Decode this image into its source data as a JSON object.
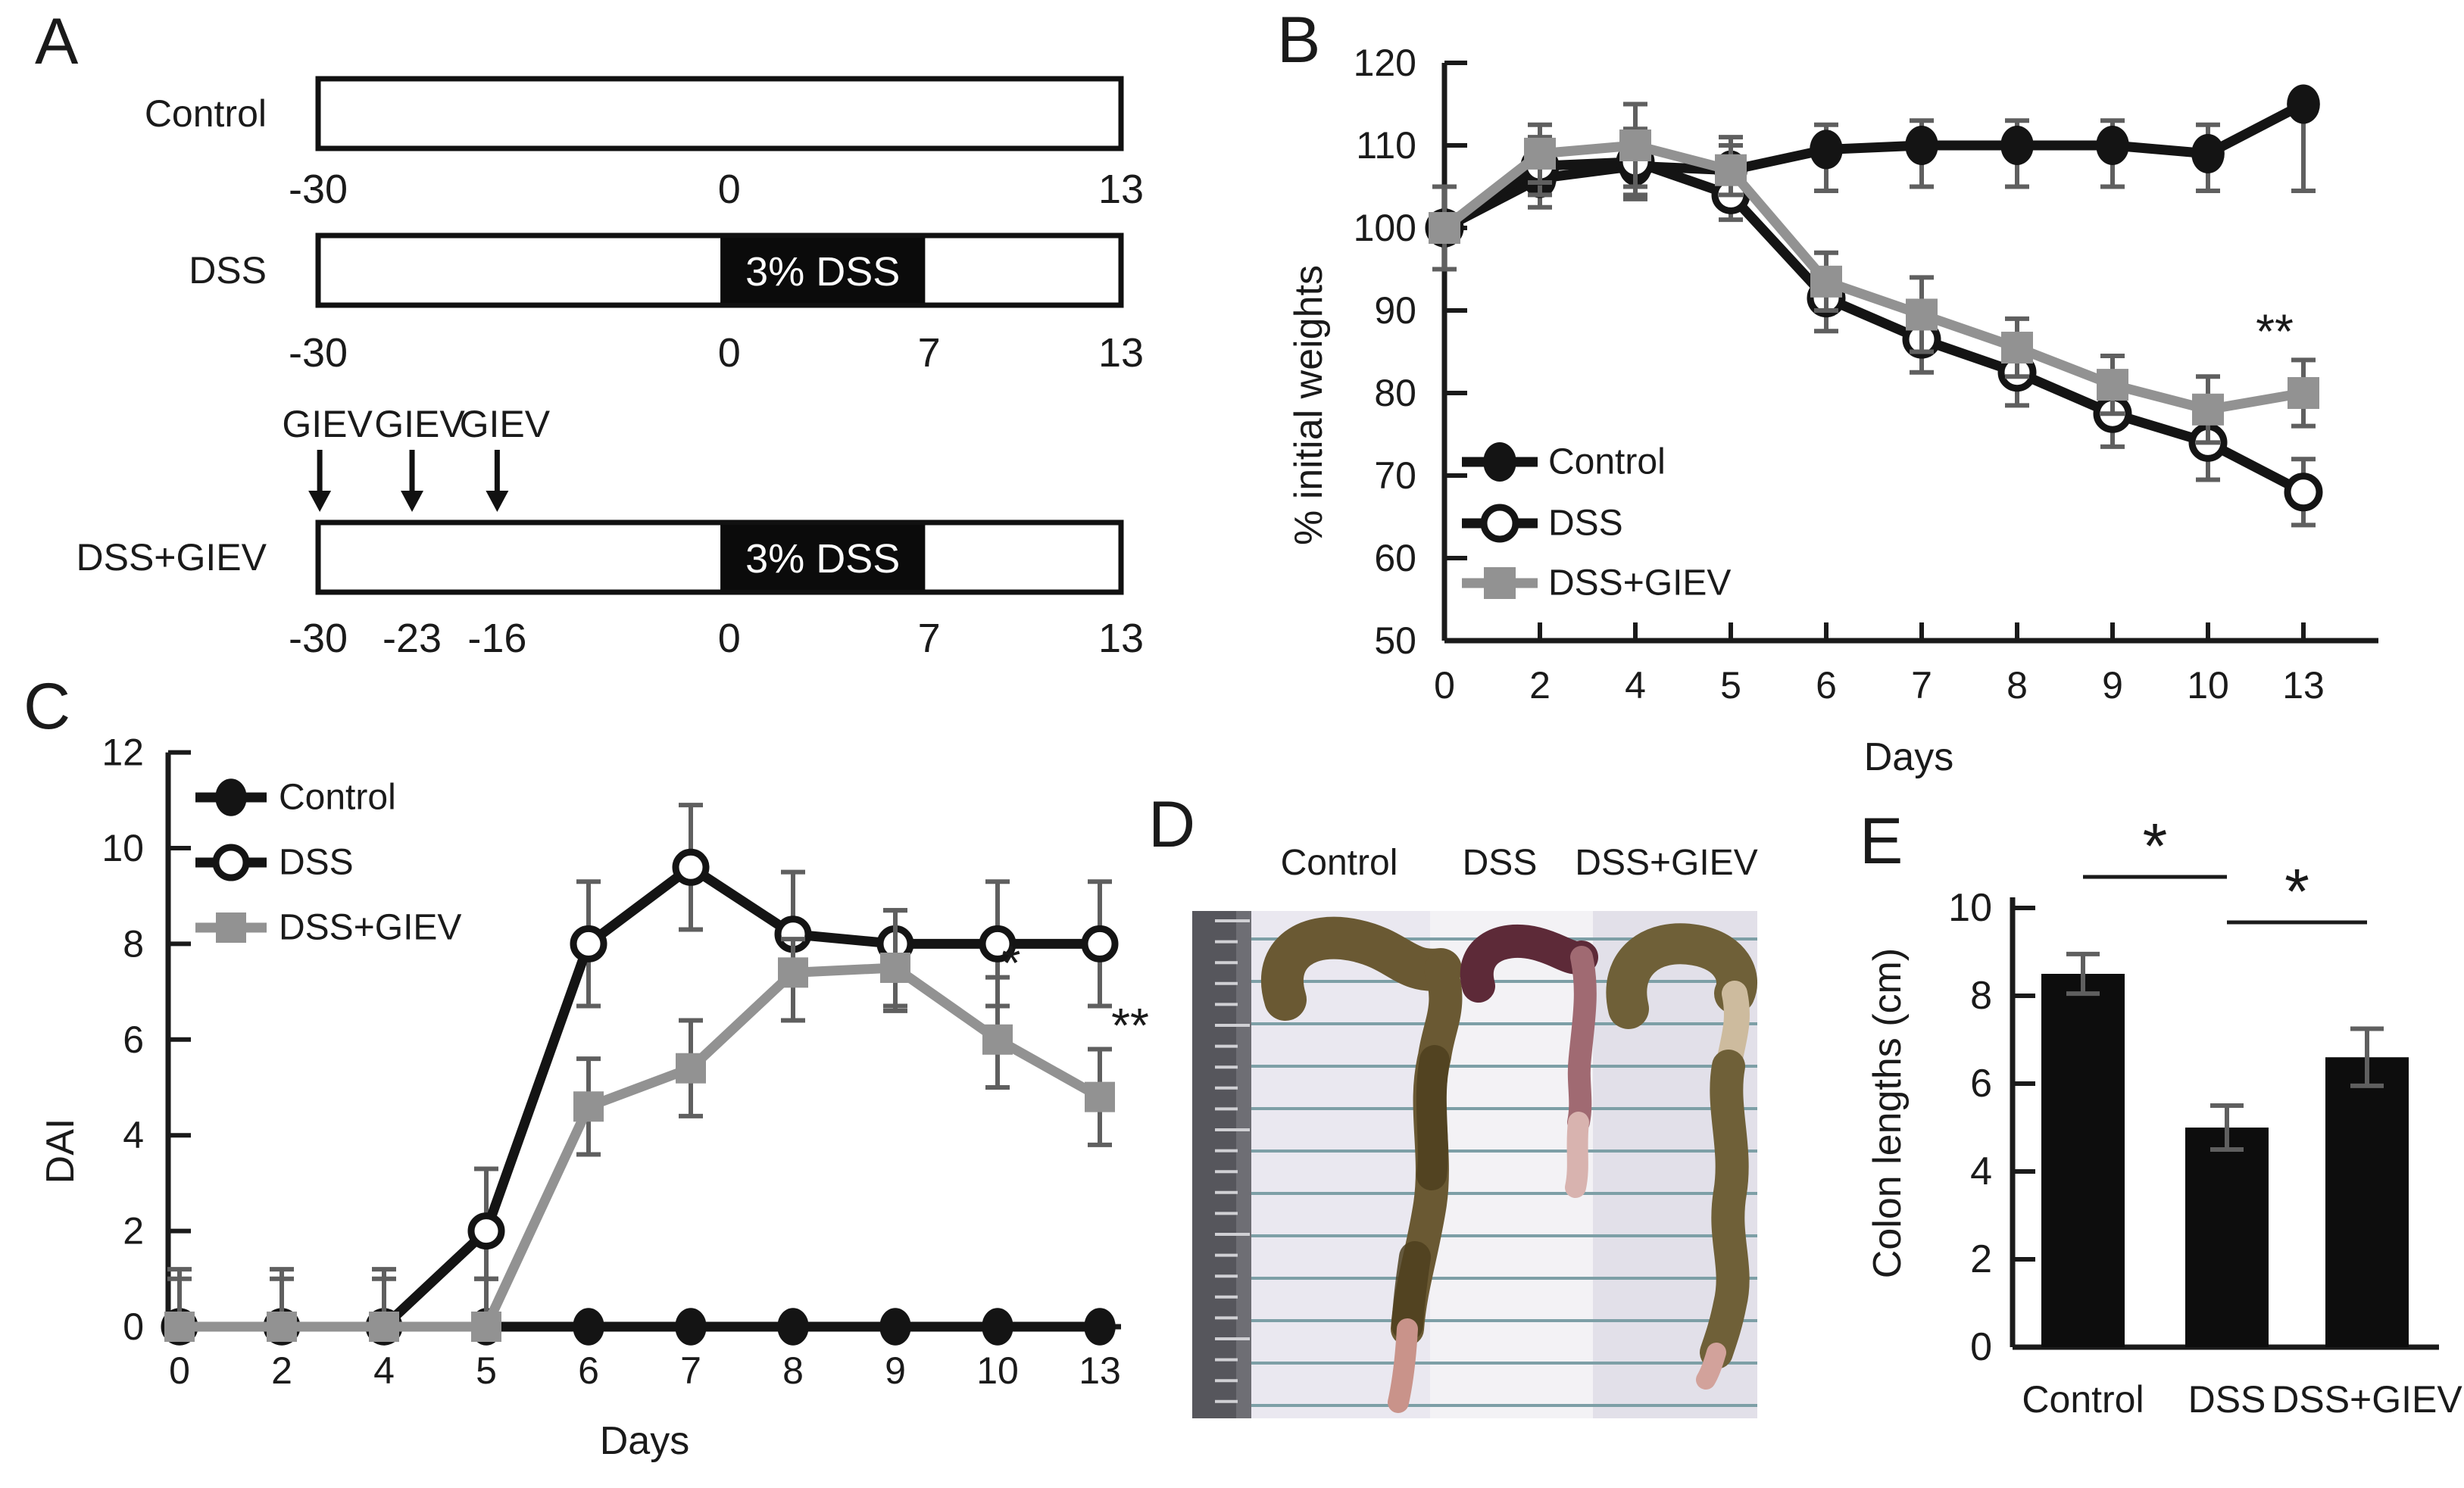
{
  "panel_letters": {
    "a": "A",
    "b": "B",
    "c": "C",
    "d": "D",
    "e": "E"
  },
  "panel_a": {
    "label": "A",
    "block_label": "3% DSS",
    "rows": [
      {
        "group": "Control",
        "has_block": false,
        "ticks": [
          {
            "d": "-30",
            "f": 0.0
          },
          {
            "d": "0",
            "f": 0.512
          },
          {
            "d": "13",
            "f": 1.0
          }
        ],
        "giev": []
      },
      {
        "group": "DSS",
        "has_block": true,
        "ticks": [
          {
            "d": "-30",
            "f": 0.0
          },
          {
            "d": "0",
            "f": 0.512
          },
          {
            "d": "7",
            "f": 0.761
          },
          {
            "d": "13",
            "f": 1.0
          }
        ],
        "giev": []
      },
      {
        "group": "DSS+GIEV",
        "has_block": true,
        "ticks": [
          {
            "d": "-30",
            "f": 0.0
          },
          {
            "d": "-23",
            "f": 0.117
          },
          {
            "d": "-16",
            "f": 0.223
          },
          {
            "d": "0",
            "f": 0.512
          },
          {
            "d": "7",
            "f": 0.761
          },
          {
            "d": "13",
            "f": 1.0
          }
        ],
        "giev": [
          {
            "label": "GIEV",
            "f": 0.002
          },
          {
            "label": "GIEV",
            "f": 0.117
          },
          {
            "label": "GIEV",
            "f": 0.223
          }
        ]
      }
    ],
    "block_span": {
      "f1": 0.501,
      "f2": 0.756
    }
  },
  "chart_data": [
    {
      "id": "B",
      "type": "line",
      "title": "",
      "xlabel": "Days",
      "ylabel": "% initial weights",
      "x_categories": [
        "0",
        "2",
        "4",
        "5",
        "6",
        "7",
        "8",
        "9",
        "10",
        "13"
      ],
      "ylim": [
        50,
        120
      ],
      "yticks": [
        "50",
        "60",
        "70",
        "80",
        "90",
        "100",
        "110",
        "120"
      ],
      "legend_position": "lower-left-inside",
      "grid": false,
      "series": [
        {
          "name": "Control",
          "marker": "filled-circle",
          "color": "#141414",
          "values": [
            100,
            106,
            107.5,
            107,
            109.5,
            110,
            110,
            110,
            109,
            115
          ],
          "err_plus": [
            5,
            3.5,
            4,
            4,
            3,
            3,
            3,
            3,
            3.5,
            0.5
          ],
          "err_minus": [
            5,
            3.5,
            4,
            4,
            5,
            5,
            5,
            5,
            4.5,
            10.5
          ]
        },
        {
          "name": "DSS",
          "marker": "open-circle",
          "color": "#141414",
          "values": [
            100,
            107.5,
            108,
            104,
            91.5,
            86.5,
            82.5,
            77.5,
            74,
            68
          ],
          "err_plus": [
            5,
            3.5,
            4,
            3,
            3,
            3,
            3,
            3,
            3,
            4
          ],
          "err_minus": [
            5,
            3.5,
            4,
            3,
            4,
            4,
            4,
            4,
            4.5,
            4
          ]
        },
        {
          "name": "DSS+GIEV",
          "marker": "square",
          "color": "#929292",
          "values": [
            100,
            109,
            110,
            107,
            93.5,
            89.5,
            85.5,
            81,
            78,
            80
          ],
          "err_plus": [
            5,
            3.5,
            5,
            3,
            3.5,
            4.5,
            3.5,
            3.5,
            4,
            4
          ],
          "err_minus": [
            5,
            3.5,
            5,
            3,
            3.5,
            4.5,
            3.5,
            3.5,
            4,
            4
          ]
        }
      ],
      "annotations": [
        {
          "text": "**",
          "x_index": 9,
          "dx": -38,
          "y": 87.5
        }
      ]
    },
    {
      "id": "C",
      "type": "line",
      "title": "",
      "xlabel": "Days",
      "ylabel": "DAI",
      "x_categories": [
        "0",
        "2",
        "4",
        "5",
        "6",
        "7",
        "8",
        "9",
        "10",
        "13"
      ],
      "ylim": [
        0,
        12
      ],
      "yticks": [
        "0",
        "2",
        "4",
        "6",
        "8",
        "10",
        "12"
      ],
      "legend_position": "upper-left-inside",
      "grid": false,
      "series": [
        {
          "name": "Control",
          "marker": "filled-circle",
          "color": "#141414",
          "values": [
            0,
            0,
            0,
            0,
            0,
            0,
            0,
            0,
            0,
            0
          ],
          "err_plus": [
            0,
            0,
            0,
            0,
            0,
            0,
            0,
            0,
            0,
            0
          ],
          "err_minus": [
            0,
            0,
            0,
            0,
            0,
            0,
            0,
            0,
            0,
            0
          ]
        },
        {
          "name": "DSS",
          "marker": "open-circle",
          "color": "#141414",
          "values": [
            0,
            0,
            0,
            2,
            8,
            9.6,
            8.2,
            8,
            8,
            8
          ],
          "err_plus": [
            1.2,
            1.2,
            1.2,
            1.3,
            1.3,
            1.3,
            1.3,
            0.7,
            1.3,
            1.3
          ],
          "err_minus": [
            0,
            0,
            0,
            1,
            1.3,
            1.3,
            1.8,
            1.4,
            1.3,
            1.3
          ]
        },
        {
          "name": "DSS+GIEV",
          "marker": "square",
          "color": "#929292",
          "values": [
            0,
            0,
            0,
            0,
            4.6,
            5.4,
            7.4,
            7.5,
            6,
            4.8
          ],
          "err_plus": [
            1,
            1,
            1,
            1,
            1,
            1,
            0.7,
            1.2,
            1.3,
            1
          ],
          "err_minus": [
            0,
            0,
            0,
            0,
            1,
            1,
            1,
            0.8,
            1,
            1
          ]
        }
      ],
      "annotations": [
        {
          "text": "*",
          "x_index": 8,
          "dx": 18,
          "y": 7.6
        },
        {
          "text": "**",
          "x_index": 9,
          "dx": 40,
          "y": 6.3
        }
      ]
    },
    {
      "id": "E",
      "type": "bar",
      "title": "",
      "xlabel": "",
      "ylabel": "Colon lengths (cm)",
      "categories": [
        "Control",
        "DSS",
        "DSS+GIEV"
      ],
      "values": [
        8.5,
        5.0,
        6.6
      ],
      "errors": [
        0.45,
        0.5,
        0.65
      ],
      "ylim": [
        0,
        10
      ],
      "yticks": [
        "0",
        "2",
        "4",
        "6",
        "8",
        "10"
      ],
      "bar_color": "#0d0d0d",
      "grid": false,
      "significance": [
        {
          "from": 0,
          "to": 1,
          "label": "*"
        },
        {
          "from": 1,
          "to": 2,
          "label": "*"
        }
      ]
    }
  ],
  "panel_d": {
    "label": "D",
    "columns": [
      "Control",
      "DSS",
      "DSS+GIEV"
    ],
    "photo": {
      "bg_strips": [
        "#eae8f0",
        "#f3f2f5",
        "#e2e0e9"
      ],
      "line_color": "#7d9fa6",
      "ruler_color": "#56565c",
      "ruler_tick_color": "#d0d0d4",
      "colon_colors": {
        "control": [
          "#6a5933",
          "#4e3f1e",
          "#c9938a"
        ],
        "dss": [
          "#5d2a38",
          "#a06a72",
          "#d8b3af"
        ],
        "giev": [
          "#6f6038",
          "#cdbb9e",
          "#d2a29b"
        ]
      }
    }
  },
  "colors": {
    "black": "#141414",
    "gray": "#929292",
    "error_bar": "#5f5f5f",
    "axis": "#1a1a1a"
  }
}
